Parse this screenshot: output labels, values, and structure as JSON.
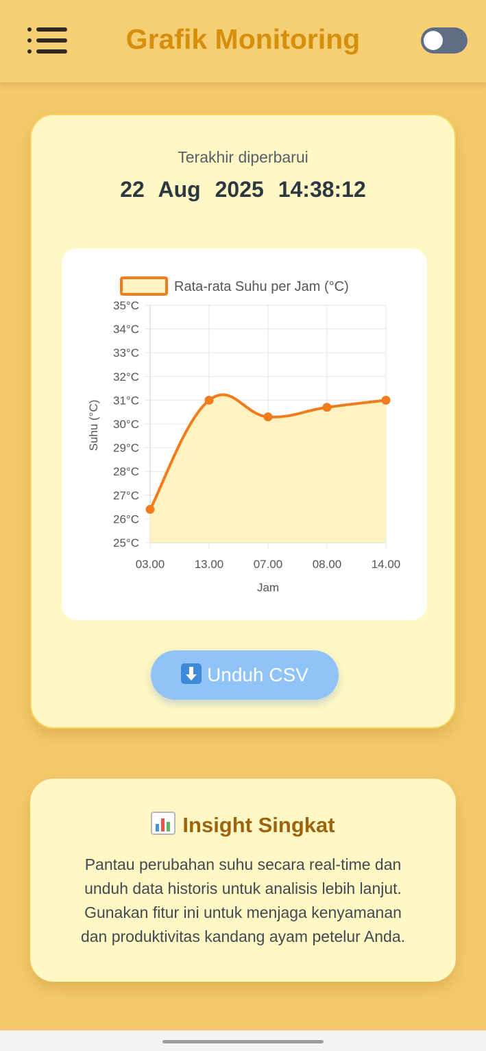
{
  "header": {
    "title": "Grafik Monitoring",
    "menu_icon": "menu-icon",
    "theme_toggle_on": false
  },
  "status": {
    "label": "Terakhir diperbarui",
    "datetime": "22 Aug 2025   14:38:12"
  },
  "chart_data": {
    "type": "line",
    "categories": [
      "03.00",
      "13.00",
      "07.00",
      "08.00",
      "14.00"
    ],
    "series": [
      {
        "name": "Rata-rata Suhu per Jam (°C)",
        "values": [
          26.4,
          31.0,
          30.3,
          30.7,
          31.0
        ]
      }
    ],
    "xlabel": "Jam",
    "ylabel": "Suhu (°C)",
    "ylim": [
      25,
      35
    ],
    "yticks": [
      "25°C",
      "26°C",
      "27°C",
      "28°C",
      "29°C",
      "30°C",
      "31°C",
      "32°C",
      "33°C",
      "34°C",
      "35°C"
    ],
    "grid": true,
    "legend": "top",
    "colors": {
      "line": "#f07c1e",
      "fill": "#fdf2c0",
      "grid": "#e6e6e6"
    }
  },
  "actions": {
    "download_label": "Unduh CSV",
    "download_icon": "download-arrow-icon"
  },
  "insight": {
    "icon": "bar-chart-icon",
    "title": "Insight Singkat",
    "lines": [
      "Pantau perubahan suhu secara real-time dan",
      "unduh data historis untuk analisis lebih lanjut.",
      "Gunakan fitur ini untuk menjaga kenyamanan",
      "dan produktivitas kandang ayam petelur Anda."
    ]
  },
  "colors": {
    "background": "#f5c96b",
    "card": "#fff8c4",
    "title": "#d68f0d",
    "insight_title": "#9a6410",
    "button": "#90c4f8",
    "toggle": "#5f6d84"
  }
}
